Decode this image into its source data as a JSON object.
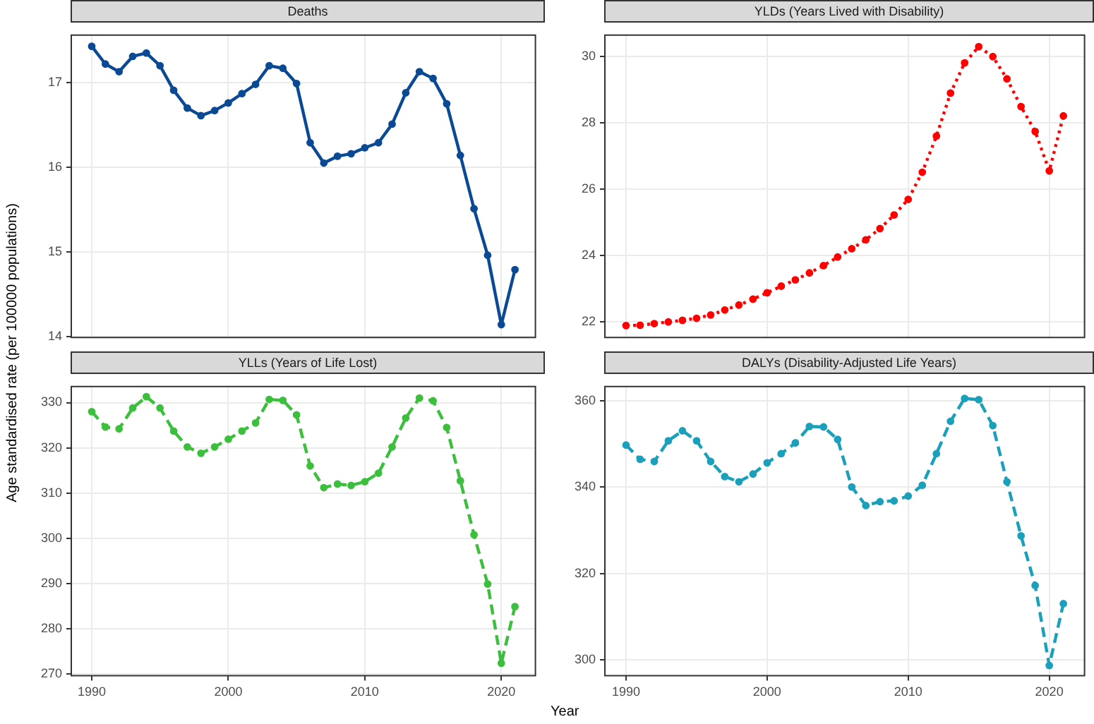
{
  "chart_data": [
    {
      "type": "line",
      "title": "Deaths",
      "ylabel": "Age standardised rate (per 100000 populations)",
      "x": [
        1990,
        1991,
        1992,
        1993,
        1994,
        1995,
        1996,
        1997,
        1998,
        1999,
        2000,
        2001,
        2002,
        2003,
        2004,
        2005,
        2006,
        2007,
        2008,
        2009,
        2010,
        2011,
        2012,
        2013,
        2014,
        2015,
        2016,
        2017,
        2018,
        2019,
        2020,
        2021
      ],
      "values": [
        17.43,
        17.22,
        17.13,
        17.31,
        17.35,
        17.2,
        16.91,
        16.7,
        16.61,
        16.67,
        16.76,
        16.87,
        16.98,
        17.2,
        17.17,
        16.99,
        16.29,
        16.05,
        16.13,
        16.16,
        16.23,
        16.29,
        16.51,
        16.88,
        17.13,
        17.05,
        16.75,
        16.14,
        15.51,
        14.96,
        14.14,
        14.79
      ],
      "color": "#0a4a94",
      "line_style": "solid",
      "marker": "circle",
      "xlim": [
        1988.45,
        2022.55
      ],
      "xticks": [
        1990,
        2000,
        2010,
        2020
      ],
      "ylim": [
        13.98,
        17.57
      ],
      "yticks": [
        14,
        15,
        16,
        17
      ],
      "grid": true,
      "tick_labels": "y"
    },
    {
      "type": "line",
      "title": "YLDs (Years Lived with Disability)",
      "x": [
        1990,
        1991,
        1992,
        1993,
        1994,
        1995,
        1996,
        1997,
        1998,
        1999,
        2000,
        2001,
        2002,
        2003,
        2004,
        2005,
        2006,
        2007,
        2008,
        2009,
        2010,
        2011,
        2012,
        2013,
        2014,
        2015,
        2016,
        2017,
        2018,
        2019,
        2020,
        2021
      ],
      "values": [
        21.88,
        21.89,
        21.94,
        21.99,
        22.04,
        22.1,
        22.2,
        22.35,
        22.5,
        22.68,
        22.87,
        23.07,
        23.26,
        23.47,
        23.69,
        23.95,
        24.2,
        24.47,
        24.81,
        25.22,
        25.69,
        26.51,
        27.6,
        28.9,
        29.81,
        30.3,
        30.0,
        29.33,
        28.49,
        27.74,
        26.55,
        28.21
      ],
      "color": "#ff0000",
      "line_style": "dotted",
      "marker": "circle",
      "xlim": [
        1988.45,
        2022.55
      ],
      "xticks": [
        1990,
        2000,
        2010,
        2020
      ],
      "ylim": [
        21.5,
        30.67
      ],
      "yticks": [
        22,
        24,
        26,
        28,
        30
      ],
      "grid": true,
      "tick_labels": "y"
    },
    {
      "type": "line",
      "title": "YLLs (Years of Life Lost)",
      "x": [
        1990,
        1991,
        1992,
        1993,
        1994,
        1995,
        1996,
        1997,
        1998,
        1999,
        2000,
        2001,
        2002,
        2003,
        2004,
        2005,
        2006,
        2007,
        2008,
        2009,
        2010,
        2011,
        2012,
        2013,
        2014,
        2015,
        2016,
        2017,
        2018,
        2019,
        2020,
        2021
      ],
      "values": [
        328.0,
        324.6,
        324.2,
        328.8,
        331.3,
        328.8,
        323.7,
        320.2,
        318.8,
        320.2,
        321.9,
        323.7,
        325.5,
        330.7,
        330.5,
        327.3,
        316.0,
        311.2,
        312.0,
        311.7,
        312.5,
        314.4,
        320.2,
        326.6,
        331.0,
        330.4,
        324.5,
        312.7,
        300.8,
        289.9,
        272.4,
        284.9
      ],
      "color": "#3cbf3c",
      "line_style": "dashed",
      "marker": "circle",
      "xlim": [
        1988.45,
        2022.55
      ],
      "xticks": [
        1990,
        2000,
        2010,
        2020
      ],
      "ylim": [
        269.5,
        333.7
      ],
      "yticks": [
        270,
        280,
        290,
        300,
        310,
        320,
        330
      ],
      "grid": true
    },
    {
      "type": "line",
      "title": "DALYs (Disability-Adjusted Life Years)",
      "xlabel": "Year",
      "x": [
        1990,
        1991,
        1992,
        1993,
        1994,
        1995,
        1996,
        1997,
        1998,
        1999,
        2000,
        2001,
        2002,
        2003,
        2004,
        2005,
        2006,
        2007,
        2008,
        2009,
        2010,
        2011,
        2012,
        2013,
        2014,
        2015,
        2016,
        2017,
        2018,
        2019,
        2020,
        2021
      ],
      "values": [
        349.7,
        346.4,
        345.9,
        350.7,
        353.0,
        350.7,
        345.9,
        342.4,
        341.2,
        343.0,
        345.6,
        347.7,
        350.2,
        354.0,
        353.9,
        351.0,
        340.0,
        335.7,
        336.6,
        336.8,
        337.9,
        340.4,
        347.7,
        355.2,
        360.5,
        360.2,
        354.2,
        341.2,
        328.7,
        317.2,
        298.7,
        313.0
      ],
      "color": "#1aa0bb",
      "line_style": "dashed",
      "marker": "circle",
      "xlim": [
        1988.45,
        2022.55
      ],
      "xticks": [
        1990,
        2000,
        2010,
        2020
      ],
      "ylim": [
        296.2,
        363.4
      ],
      "yticks": [
        300,
        320,
        340,
        360
      ],
      "grid": true
    }
  ]
}
